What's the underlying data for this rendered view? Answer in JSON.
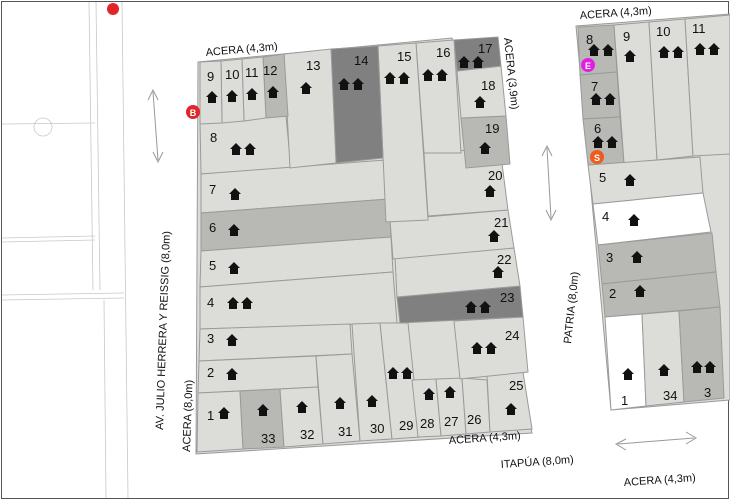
{
  "labels": {
    "acera_top": "ACERA (4,3m)",
    "acera_right_block": "ACERA (3,9m)",
    "acera_top_right": "ACERA (4,3m)",
    "acera_bottom": "ACERA (4,3m)",
    "acera_left": "ACERA (8,0m)",
    "av_julio": "AV. JULIO HERRERA Y REISSIG (8,0m)",
    "patria": "PATRIA (8,0m)",
    "itapua": "ITAPÚA (8,0m)",
    "acera_bottom_right": "ACERA (4,3m)"
  },
  "markers": {
    "b": "B",
    "e": "E",
    "s": "S"
  },
  "colors": {
    "lot_light": "#dcdcd8",
    "lot_mid": "#b8b8b4",
    "lot_dark": "#808080",
    "house": "#111111",
    "marker_b": "#e0262a",
    "marker_e": "#e020e0",
    "marker_s": "#f05a1a"
  },
  "lots_main": [
    {
      "id": "1",
      "label": "1",
      "tone": "lot_light"
    },
    {
      "id": "2",
      "label": "2",
      "tone": "lot_light"
    },
    {
      "id": "3",
      "label": "3",
      "tone": "lot_light"
    },
    {
      "id": "4",
      "label": "4",
      "tone": "lot_light"
    },
    {
      "id": "5",
      "label": "5",
      "tone": "lot_light"
    },
    {
      "id": "6",
      "label": "6",
      "tone": "lot_mid"
    },
    {
      "id": "7",
      "label": "7",
      "tone": "lot_light"
    },
    {
      "id": "8",
      "label": "8",
      "tone": "lot_light"
    },
    {
      "id": "9",
      "label": "9",
      "tone": "lot_light"
    },
    {
      "id": "10",
      "label": "10",
      "tone": "lot_light"
    },
    {
      "id": "11",
      "label": "11",
      "tone": "lot_light"
    },
    {
      "id": "12",
      "label": "12",
      "tone": "lot_mid"
    },
    {
      "id": "13",
      "label": "13",
      "tone": "lot_light"
    },
    {
      "id": "14",
      "label": "14",
      "tone": "lot_dark"
    },
    {
      "id": "15",
      "label": "15",
      "tone": "lot_light"
    },
    {
      "id": "16",
      "label": "16",
      "tone": "lot_light"
    },
    {
      "id": "17",
      "label": "17",
      "tone": "lot_dark"
    },
    {
      "id": "18",
      "label": "18",
      "tone": "lot_light"
    },
    {
      "id": "19",
      "label": "19",
      "tone": "lot_mid"
    },
    {
      "id": "20",
      "label": "20",
      "tone": "lot_light"
    },
    {
      "id": "21",
      "label": "21",
      "tone": "lot_light"
    },
    {
      "id": "22",
      "label": "22",
      "tone": "lot_light"
    },
    {
      "id": "23",
      "label": "23",
      "tone": "lot_dark"
    },
    {
      "id": "24",
      "label": "24",
      "tone": "lot_light"
    },
    {
      "id": "25",
      "label": "25",
      "tone": "lot_light"
    },
    {
      "id": "26",
      "label": "26",
      "tone": "lot_light"
    },
    {
      "id": "27",
      "label": "27",
      "tone": "lot_light"
    },
    {
      "id": "28",
      "label": "28",
      "tone": "lot_light"
    },
    {
      "id": "29",
      "label": "29",
      "tone": "lot_light"
    },
    {
      "id": "30",
      "label": "30",
      "tone": "lot_light"
    },
    {
      "id": "31",
      "label": "31",
      "tone": "lot_light"
    },
    {
      "id": "32",
      "label": "32",
      "tone": "lot_light"
    },
    {
      "id": "33",
      "label": "33",
      "tone": "lot_mid"
    }
  ],
  "lots_right": [
    {
      "id": "r1",
      "label": "1"
    },
    {
      "id": "r2",
      "label": "2"
    },
    {
      "id": "r3",
      "label": "3"
    },
    {
      "id": "r4",
      "label": "4"
    },
    {
      "id": "r5",
      "label": "5"
    },
    {
      "id": "r6",
      "label": "6"
    },
    {
      "id": "r7",
      "label": "7"
    },
    {
      "id": "r8",
      "label": "8"
    },
    {
      "id": "r9",
      "label": "9"
    },
    {
      "id": "r10",
      "label": "10"
    },
    {
      "id": "r11",
      "label": "11"
    },
    {
      "id": "r34",
      "label": "34"
    },
    {
      "id": "r3b",
      "label": "3"
    }
  ]
}
